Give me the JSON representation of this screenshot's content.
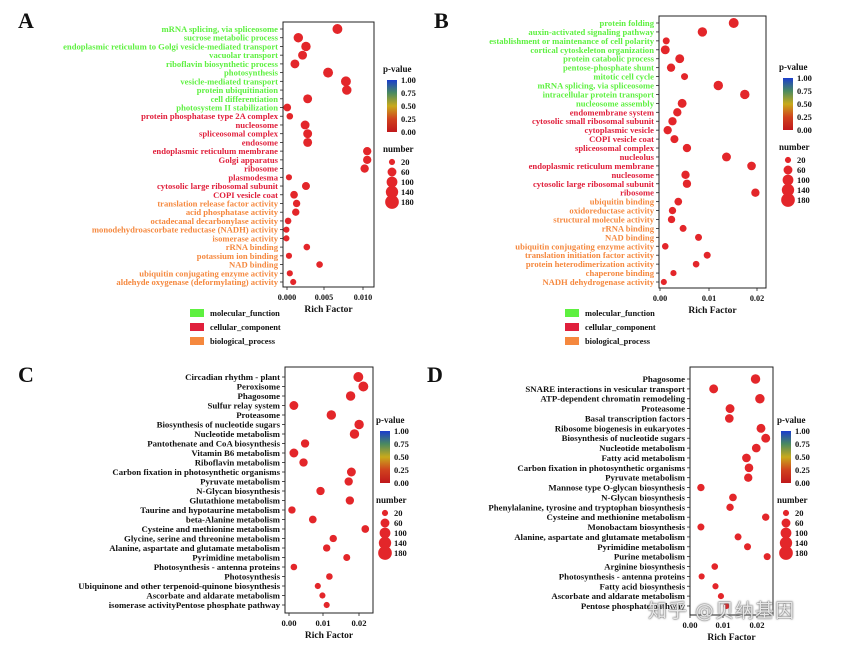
{
  "chart_data": [
    {
      "type": "scatter",
      "panel_label": "A",
      "xlabel": "Rich Factor",
      "x_ticks": [
        "0.000",
        "0.005",
        "0.010"
      ],
      "xlim": [
        0,
        0.0107
      ],
      "color_label": "p-value",
      "color_ticks": [
        "1.00",
        "0.75",
        "0.50",
        "0.25",
        "0.00"
      ],
      "size_label": "number",
      "size_ticks": [
        "20",
        "60",
        "100",
        "140",
        "180"
      ],
      "category_legend": [
        {
          "label": "molecular_function",
          "color": "#5ef040"
        },
        {
          "label": "cellular_component",
          "color": "#e0203c"
        },
        {
          "label": "biological_process",
          "color": "#f5883e"
        }
      ],
      "points": [
        {
          "term": "mRNA splicing, via spliceosome",
          "category": "molecular_function",
          "x": 0.0064,
          "size": 80
        },
        {
          "term": "sucrose metabolic process",
          "category": "molecular_function",
          "x": 0.0018,
          "size": 70
        },
        {
          "term": "endoplasmic reticulum to Golgi vesicle-mediated transport",
          "category": "molecular_function",
          "x": 0.0027,
          "size": 70
        },
        {
          "term": "vacuolar transport",
          "category": "molecular_function",
          "x": 0.0023,
          "size": 60
        },
        {
          "term": "riboflavin biosynthetic process",
          "category": "molecular_function",
          "x": 0.0014,
          "size": 60
        },
        {
          "term": "photosynthesis",
          "category": "molecular_function",
          "x": 0.0053,
          "size": 80
        },
        {
          "term": "vesicle-mediated transport",
          "category": "molecular_function",
          "x": 0.0074,
          "size": 80
        },
        {
          "term": "protein ubiquitination",
          "category": "molecular_function",
          "x": 0.0075,
          "size": 70
        },
        {
          "term": "cell differentiation",
          "category": "molecular_function",
          "x": 0.0029,
          "size": 60
        },
        {
          "term": "photosystem II stabilization",
          "category": "molecular_function",
          "x": 0.0005,
          "size": 40
        },
        {
          "term": "protein phosphatase type 2A complex",
          "category": "cellular_component",
          "x": 0.0008,
          "size": 25
        },
        {
          "term": "nucleosome",
          "category": "cellular_component",
          "x": 0.0026,
          "size": 60
        },
        {
          "term": "spliceosomal complex",
          "category": "cellular_component",
          "x": 0.0029,
          "size": 60
        },
        {
          "term": "endosome",
          "category": "cellular_component",
          "x": 0.0029,
          "size": 60
        },
        {
          "term": "endoplasmic reticulum membrane",
          "category": "cellular_component",
          "x": 0.0099,
          "size": 50
        },
        {
          "term": "Golgi apparatus",
          "category": "cellular_component",
          "x": 0.0099,
          "size": 50
        },
        {
          "term": "ribosome",
          "category": "cellular_component",
          "x": 0.0096,
          "size": 50
        },
        {
          "term": "plasmodesma",
          "category": "cellular_component",
          "x": 0.0007,
          "size": 20
        },
        {
          "term": "cytosolic large ribosomal subunit",
          "category": "cellular_component",
          "x": 0.0027,
          "size": 45
        },
        {
          "term": "COPI vesicle coat",
          "category": "cellular_component",
          "x": 0.0013,
          "size": 40
        },
        {
          "term": "translation release factor activity",
          "category": "biological_process",
          "x": 0.0016,
          "size": 35
        },
        {
          "term": "acid phosphatase activity",
          "category": "biological_process",
          "x": 0.0015,
          "size": 35
        },
        {
          "term": "octadecanal decarbonylase activity",
          "category": "biological_process",
          "x": 0.0006,
          "size": 25
        },
        {
          "term": "monodehydroascorbate reductase (NADH) activity",
          "category": "biological_process",
          "x": 0.0004,
          "size": 20
        },
        {
          "term": "isomerase activity",
          "category": "biological_process",
          "x": 0.0004,
          "size": 20
        },
        {
          "term": "rRNA binding",
          "category": "biological_process",
          "x": 0.0028,
          "size": 25
        },
        {
          "term": "potassium ion binding",
          "category": "biological_process",
          "x": 0.0007,
          "size": 20
        },
        {
          "term": "NAD binding",
          "category": "biological_process",
          "x": 0.0043,
          "size": 25
        },
        {
          "term": "ubiquitin conjugating enzyme activity",
          "category": "biological_process",
          "x": 0.0008,
          "size": 20
        },
        {
          "term": "aldehyde oxygenase (deformylating) activity",
          "category": "biological_process",
          "x": 0.0012,
          "size": 20
        }
      ]
    },
    {
      "type": "scatter",
      "panel_label": "B",
      "xlabel": "Rich Factor",
      "x_ticks": [
        "0.00",
        "0.01",
        "0.02"
      ],
      "xlim": [
        0,
        0.0222
      ],
      "color_label": "p-value",
      "color_ticks": [
        "1.00",
        "0.75",
        "0.50",
        "0.25",
        "0.00"
      ],
      "size_label": "number",
      "size_ticks": [
        "20",
        "60",
        "100",
        "140",
        "180"
      ],
      "category_legend": [
        {
          "label": "molecular_function",
          "color": "#5ef040"
        },
        {
          "label": "cellular_component",
          "color": "#e0203c"
        },
        {
          "label": "biological_process",
          "color": "#f5883e"
        }
      ],
      "points": [
        {
          "term": "protein folding",
          "category": "molecular_function",
          "x": 0.0155,
          "size": 80
        },
        {
          "term": "auxin-activated signaling pathway",
          "category": "molecular_function",
          "x": 0.009,
          "size": 70
        },
        {
          "term": "establishment or maintenance of cell polarity",
          "category": "molecular_function",
          "x": 0.0015,
          "size": 30
        },
        {
          "term": "cortical cytoskeleton organization",
          "category": "molecular_function",
          "x": 0.0013,
          "size": 60
        },
        {
          "term": "protein catabolic process",
          "category": "molecular_function",
          "x": 0.0043,
          "size": 60
        },
        {
          "term": "pentose-phosphate shunt",
          "category": "molecular_function",
          "x": 0.0025,
          "size": 50
        },
        {
          "term": "mitotic cell cycle",
          "category": "molecular_function",
          "x": 0.0053,
          "size": 30
        },
        {
          "term": "mRNA splicing, via spliceosome",
          "category": "molecular_function",
          "x": 0.0123,
          "size": 70
        },
        {
          "term": "intracellular protein transport",
          "category": "molecular_function",
          "x": 0.0178,
          "size": 70
        },
        {
          "term": "nucleosome assembly",
          "category": "molecular_function",
          "x": 0.0048,
          "size": 60
        },
        {
          "term": "endomembrane system",
          "category": "cellular_component",
          "x": 0.0038,
          "size": 50
        },
        {
          "term": "cytosolic small ribosomal subunit",
          "category": "cellular_component",
          "x": 0.0028,
          "size": 50
        },
        {
          "term": "cytoplasmic vesicle",
          "category": "cellular_component",
          "x": 0.0018,
          "size": 50
        },
        {
          "term": "COPI vesicle coat",
          "category": "cellular_component",
          "x": 0.0032,
          "size": 45
        },
        {
          "term": "spliceosomal complex",
          "category": "cellular_component",
          "x": 0.0058,
          "size": 50
        },
        {
          "term": "nucleolus",
          "category": "cellular_component",
          "x": 0.014,
          "size": 60
        },
        {
          "term": "endoplasmic reticulum membrane",
          "category": "cellular_component",
          "x": 0.0192,
          "size": 55
        },
        {
          "term": "nucleosome",
          "category": "cellular_component",
          "x": 0.0055,
          "size": 50
        },
        {
          "term": "cytosolic large ribosomal subunit",
          "category": "cellular_component",
          "x": 0.0058,
          "size": 50
        },
        {
          "term": "ribosome",
          "category": "cellular_component",
          "x": 0.02,
          "size": 50
        },
        {
          "term": "ubiquitin binding",
          "category": "biological_process",
          "x": 0.004,
          "size": 40
        },
        {
          "term": "oxidoreductase activity",
          "category": "biological_process",
          "x": 0.0028,
          "size": 35
        },
        {
          "term": "structural molecule activity",
          "category": "biological_process",
          "x": 0.0026,
          "size": 35
        },
        {
          "term": "rRNA binding",
          "category": "biological_process",
          "x": 0.005,
          "size": 30
        },
        {
          "term": "NAD binding",
          "category": "biological_process",
          "x": 0.0082,
          "size": 30
        },
        {
          "term": "ubiquitin conjugating enzyme activity",
          "category": "biological_process",
          "x": 0.0013,
          "size": 25
        },
        {
          "term": "translation initiation factor activity",
          "category": "biological_process",
          "x": 0.01,
          "size": 30
        },
        {
          "term": "protein heterodimerization activity",
          "category": "biological_process",
          "x": 0.0077,
          "size": 25
        },
        {
          "term": "chaperone binding",
          "category": "biological_process",
          "x": 0.003,
          "size": 20
        },
        {
          "term": "NADH dehydrogenase activity",
          "category": "biological_process",
          "x": 0.001,
          "size": 20
        }
      ]
    },
    {
      "type": "scatter",
      "panel_label": "C",
      "xlabel": "Rich Factor",
      "x_ticks": [
        "0.00",
        "0.01",
        "0.02"
      ],
      "xlim": [
        0,
        0.0228
      ],
      "color_label": "p-value",
      "color_ticks": [
        "1.00",
        "0.75",
        "0.50",
        "0.25",
        "0.00"
      ],
      "size_label": "number",
      "size_ticks": [
        "20",
        "60",
        "100",
        "140",
        "180"
      ],
      "points": [
        {
          "term": "Circadian rhythm - plant",
          "x": 0.019,
          "size": 80
        },
        {
          "term": "Peroxisome",
          "x": 0.0203,
          "size": 80
        },
        {
          "term": "Phagosome",
          "x": 0.017,
          "size": 70
        },
        {
          "term": "Sulfur relay system",
          "x": 0.0023,
          "size": 60
        },
        {
          "term": "Proteasome",
          "x": 0.012,
          "size": 70
        },
        {
          "term": "Biosynthesis of nucleotide sugars",
          "x": 0.0192,
          "size": 70
        },
        {
          "term": "Nucleotide metabolism",
          "x": 0.018,
          "size": 70
        },
        {
          "term": "Pantothenate and CoA biosynthesis",
          "x": 0.0052,
          "size": 50
        },
        {
          "term": "Vitamin B6 metabolism",
          "x": 0.0023,
          "size": 60
        },
        {
          "term": "Riboflavin metabolism",
          "x": 0.0048,
          "size": 50
        },
        {
          "term": "Carbon fixation in photosynthetic organisms",
          "x": 0.0172,
          "size": 60
        },
        {
          "term": "Pyruvate metabolism",
          "x": 0.0165,
          "size": 50
        },
        {
          "term": "N-Glycan biosynthesis",
          "x": 0.0092,
          "size": 50
        },
        {
          "term": "Glutathione metabolism",
          "x": 0.0168,
          "size": 50
        },
        {
          "term": "Taurine and hypotaurine metabolism",
          "x": 0.0018,
          "size": 35
        },
        {
          "term": "beta-Alanine metabolism",
          "x": 0.0072,
          "size": 40
        },
        {
          "term": "Cysteine and methionine metabolism",
          "x": 0.0208,
          "size": 40
        },
        {
          "term": "Glycine, serine and threonine metabolism",
          "x": 0.0125,
          "size": 35
        },
        {
          "term": "Alanine, aspartate and glutamate metabolism",
          "x": 0.0108,
          "size": 35
        },
        {
          "term": "Pyrimidine metabolism",
          "x": 0.016,
          "size": 30
        },
        {
          "term": "Photosynthesis - antenna proteins",
          "x": 0.0023,
          "size": 25
        },
        {
          "term": "Photosynthesis",
          "x": 0.0115,
          "size": 25
        },
        {
          "term": "Ubiquinone and other terpenoid-quinone biosynthesis",
          "x": 0.0085,
          "size": 20
        },
        {
          "term": "Ascorbate and aldarate metabolism",
          "x": 0.0097,
          "size": 20
        },
        {
          "term": "isomerase activityPentose phosphate pathway",
          "x": 0.0108,
          "size": 20
        }
      ]
    },
    {
      "type": "scatter",
      "panel_label": "D",
      "xlabel": "Rich Factor",
      "x_ticks": [
        "0.00",
        "0.01",
        "0.02"
      ],
      "xlim": [
        0,
        0.0228
      ],
      "color_label": "p-value",
      "color_ticks": [
        "1.00",
        "0.75",
        "0.50",
        "0.25",
        "0.00"
      ],
      "size_label": "number",
      "size_ticks": [
        "20",
        "60",
        "100",
        "140",
        "180"
      ],
      "points": [
        {
          "term": "Phagosome",
          "x": 0.018,
          "size": 70
        },
        {
          "term": "SNARE interactions in vesicular transport",
          "x": 0.0065,
          "size": 60
        },
        {
          "term": "ATP-dependent chromatin remodeling",
          "x": 0.0192,
          "size": 70
        },
        {
          "term": "Proteasome",
          "x": 0.011,
          "size": 60
        },
        {
          "term": "Basal transcription factors",
          "x": 0.0108,
          "size": 55
        },
        {
          "term": "Ribosome biogenesis in eukaryotes",
          "x": 0.0195,
          "size": 60
        },
        {
          "term": "Biosynthesis of nucleotide sugars",
          "x": 0.0208,
          "size": 60
        },
        {
          "term": "Nucleotide metabolism",
          "x": 0.0182,
          "size": 55
        },
        {
          "term": "Fatty acid metabolism",
          "x": 0.0155,
          "size": 55
        },
        {
          "term": "Carbon fixation in photosynthetic organisms",
          "x": 0.0162,
          "size": 55
        },
        {
          "term": "Pyruvate metabolism",
          "x": 0.016,
          "size": 50
        },
        {
          "term": "Mannose type O-glycan biosynthesis",
          "x": 0.003,
          "size": 35
        },
        {
          "term": "N-Glycan biosynthesis",
          "x": 0.0118,
          "size": 40
        },
        {
          "term": "Phenylalanine, tyrosine and tryptophan biosynthesis",
          "x": 0.011,
          "size": 35
        },
        {
          "term": "Cysteine and methionine metabolism",
          "x": 0.0208,
          "size": 35
        },
        {
          "term": "Monobactam biosynthesis",
          "x": 0.003,
          "size": 30
        },
        {
          "term": "Alanine, aspartate and glutamate metabolism",
          "x": 0.0132,
          "size": 30
        },
        {
          "term": "Pyrimidine metabolism",
          "x": 0.0158,
          "size": 30
        },
        {
          "term": "Purine metabolism",
          "x": 0.0212,
          "size": 30
        },
        {
          "term": "Arginine biosynthesis",
          "x": 0.0068,
          "size": 25
        },
        {
          "term": "Photosynthesis - antenna proteins",
          "x": 0.0032,
          "size": 20
        },
        {
          "term": "Fatty acid biosynthesis",
          "x": 0.007,
          "size": 20
        },
        {
          "term": "Ascorbate and aldarate metabolism",
          "x": 0.0085,
          "size": 20
        },
        {
          "term": "Pentose phosphate pathway",
          "x": 0.01,
          "size": 20
        }
      ]
    }
  ],
  "watermark": "知乎 @贝纳基因",
  "colors": {
    "molecular_function": "#5ef040",
    "cellular_component": "#e0203c",
    "biological_process": "#f5883e",
    "point_fill": "#e3262a",
    "default_label": "#111111",
    "pvalue_gradient": [
      "#c0181c",
      "#d0421e",
      "#c8aa1c",
      "#4a8a60",
      "#1a3dcc"
    ]
  }
}
